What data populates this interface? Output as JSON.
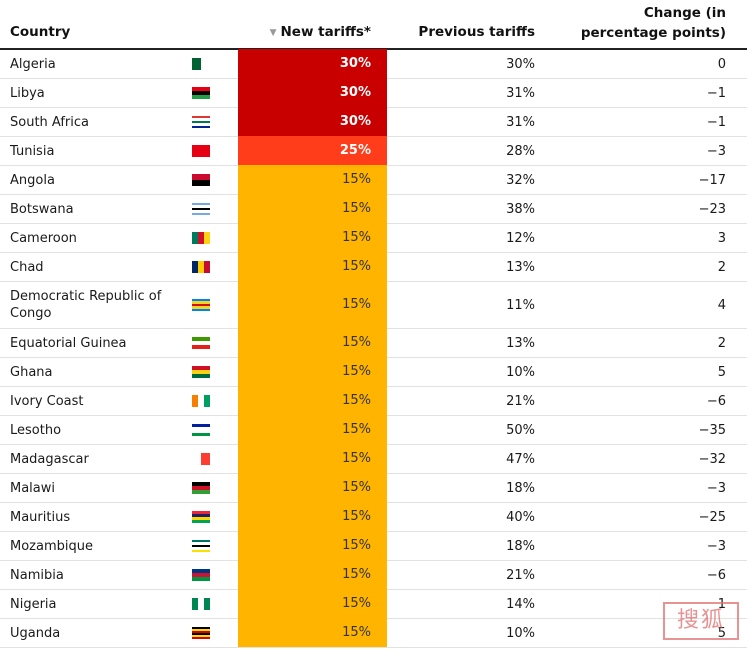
{
  "chart_data": {
    "type": "table",
    "columns": {
      "country": "Country",
      "new": "New tariffs*",
      "previous": "Previous tariffs",
      "change": "Change (in percentage points)"
    },
    "sort_indicator": "▼",
    "rows": [
      {
        "country": "Algeria",
        "new": "30%",
        "previous": "30%",
        "change": "0",
        "new_value": 30,
        "flag": "algeria-flag-icon"
      },
      {
        "country": "Libya",
        "new": "30%",
        "previous": "31%",
        "change": "−1",
        "new_value": 30,
        "flag": "libya-flag-icon"
      },
      {
        "country": "South Africa",
        "new": "30%",
        "previous": "31%",
        "change": "−1",
        "new_value": 30,
        "flag": "south-africa-flag-icon"
      },
      {
        "country": "Tunisia",
        "new": "25%",
        "previous": "28%",
        "change": "−3",
        "new_value": 25,
        "flag": "tunisia-flag-icon"
      },
      {
        "country": "Angola",
        "new": "15%",
        "previous": "32%",
        "change": "−17",
        "new_value": 15,
        "flag": "angola-flag-icon"
      },
      {
        "country": "Botswana",
        "new": "15%",
        "previous": "38%",
        "change": "−23",
        "new_value": 15,
        "flag": "botswana-flag-icon"
      },
      {
        "country": "Cameroon",
        "new": "15%",
        "previous": "12%",
        "change": "3",
        "new_value": 15,
        "flag": "cameroon-flag-icon"
      },
      {
        "country": "Chad",
        "new": "15%",
        "previous": "13%",
        "change": "2",
        "new_value": 15,
        "flag": "chad-flag-icon"
      },
      {
        "country": "Democratic Republic of Congo",
        "new": "15%",
        "previous": "11%",
        "change": "4",
        "new_value": 15,
        "flag": "drc-flag-icon"
      },
      {
        "country": "Equatorial Guinea",
        "new": "15%",
        "previous": "13%",
        "change": "2",
        "new_value": 15,
        "flag": "equatorial-guinea-flag-icon"
      },
      {
        "country": "Ghana",
        "new": "15%",
        "previous": "10%",
        "change": "5",
        "new_value": 15,
        "flag": "ghana-flag-icon"
      },
      {
        "country": "Ivory Coast",
        "new": "15%",
        "previous": "21%",
        "change": "−6",
        "new_value": 15,
        "flag": "ivory-coast-flag-icon"
      },
      {
        "country": "Lesotho",
        "new": "15%",
        "previous": "50%",
        "change": "−35",
        "new_value": 15,
        "flag": "lesotho-flag-icon"
      },
      {
        "country": "Madagascar",
        "new": "15%",
        "previous": "47%",
        "change": "−32",
        "new_value": 15,
        "flag": "madagascar-flag-icon"
      },
      {
        "country": "Malawi",
        "new": "15%",
        "previous": "18%",
        "change": "−3",
        "new_value": 15,
        "flag": "malawi-flag-icon"
      },
      {
        "country": "Mauritius",
        "new": "15%",
        "previous": "40%",
        "change": "−25",
        "new_value": 15,
        "flag": "mauritius-flag-icon"
      },
      {
        "country": "Mozambique",
        "new": "15%",
        "previous": "18%",
        "change": "−3",
        "new_value": 15,
        "flag": "mozambique-flag-icon"
      },
      {
        "country": "Namibia",
        "new": "15%",
        "previous": "21%",
        "change": "−6",
        "new_value": 15,
        "flag": "namibia-flag-icon"
      },
      {
        "country": "Nigeria",
        "new": "15%",
        "previous": "14%",
        "change": "1",
        "new_value": 15,
        "flag": "nigeria-flag-icon"
      },
      {
        "country": "Uganda",
        "new": "15%",
        "previous": "10%",
        "change": "5",
        "new_value": 15,
        "flag": "uganda-flag-icon"
      }
    ],
    "colors": {
      "30": "#c80000",
      "25": "#ff3d1a",
      "15": "#ffb400"
    }
  },
  "watermark": "搜狐"
}
